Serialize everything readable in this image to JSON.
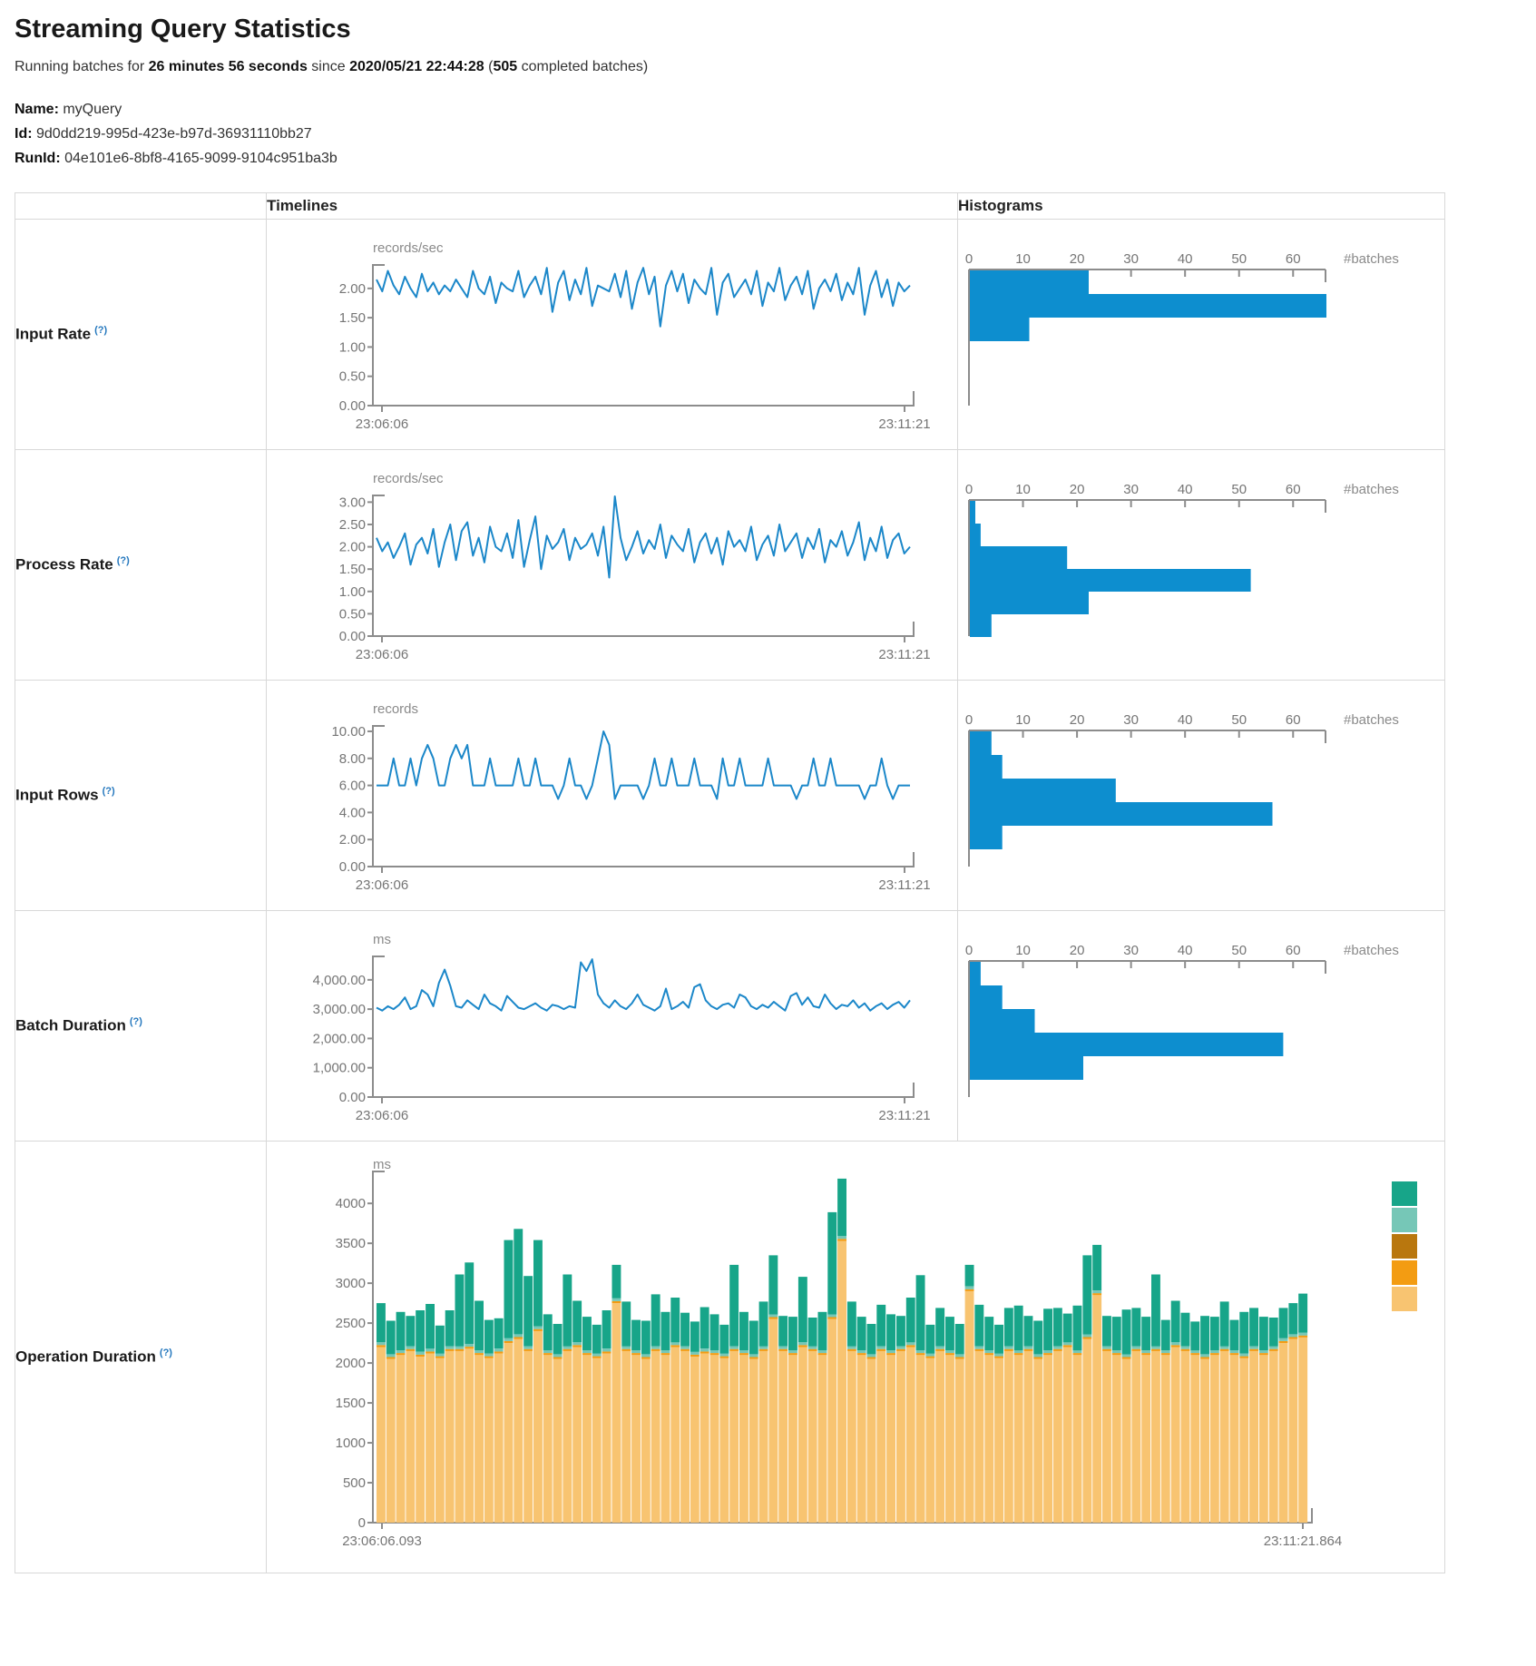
{
  "header": {
    "title": "Streaming Query Statistics",
    "summary_parts": [
      {
        "text": "Running batches for ",
        "bold": false
      },
      {
        "text": "26 minutes 56 seconds",
        "bold": true
      },
      {
        "text": " since ",
        "bold": false
      },
      {
        "text": "2020/05/21 22:44:28",
        "bold": true
      },
      {
        "text": " (",
        "bold": false
      },
      {
        "text": "505",
        "bold": true
      },
      {
        "text": " completed batches)",
        "bold": false
      }
    ],
    "meta": [
      {
        "label": "Name:",
        "value": "myQuery"
      },
      {
        "label": "Id:",
        "value": "9d0dd219-995d-423e-b97d-36931110bb27"
      },
      {
        "label": "RunId:",
        "value": "04e101e6-8bf8-4165-9099-9104c951ba3b"
      }
    ]
  },
  "table": {
    "columns": {
      "timelines": "Timelines",
      "histograms": "Histograms"
    },
    "help_marker": "(?)",
    "rows": [
      {
        "label": "Input Rate"
      },
      {
        "label": "Process Rate"
      },
      {
        "label": "Input Rows"
      },
      {
        "label": "Batch Duration"
      },
      {
        "label": "Operation Duration"
      }
    ]
  },
  "colors": {
    "line": "#1b87c9",
    "bar": "#0d8ecf",
    "axis": "#8c8c8c",
    "tick_text": "#757575",
    "unit_text": "#8a8a8a",
    "help": "#2578be",
    "legend": [
      "#17a589",
      "#76c7b7",
      "#b9770e",
      "#f39c12",
      "#f8c471"
    ],
    "op_segments": {
      "tan": "#f8c471",
      "orange": "#f39c12",
      "light_teal": "#76c7b7",
      "teal": "#17a589"
    }
  },
  "chart_data": [
    {
      "id": "input-rate-timeline",
      "render": "timeline",
      "type": "line",
      "unit": "records/sec",
      "x_start": "23:06:06",
      "x_end": "23:11:21",
      "ymax": 2.4,
      "y_ticks": [
        0,
        0.5,
        1,
        1.5,
        2
      ],
      "y_tick_labels": [
        "0.00",
        "0.50",
        "1.00",
        "1.50",
        "2.00"
      ],
      "values": [
        2.15,
        1.95,
        2.3,
        2.05,
        1.9,
        2.2,
        2.0,
        1.85,
        2.25,
        1.95,
        2.1,
        1.9,
        2.05,
        1.95,
        2.15,
        2.0,
        1.85,
        2.3,
        2.0,
        1.9,
        2.2,
        1.75,
        2.1,
        2.0,
        1.95,
        2.3,
        1.85,
        2.05,
        2.2,
        1.9,
        2.35,
        1.6,
        2.1,
        2.3,
        1.8,
        2.15,
        1.9,
        2.35,
        1.7,
        2.05,
        2.0,
        1.95,
        2.25,
        1.85,
        2.3,
        1.65,
        2.1,
        2.35,
        1.9,
        2.2,
        1.35,
        2.05,
        2.3,
        1.95,
        2.25,
        1.75,
        2.15,
        2.0,
        1.9,
        2.35,
        1.55,
        2.1,
        2.25,
        1.85,
        2.0,
        2.15,
        1.9,
        2.3,
        1.7,
        2.1,
        1.95,
        2.35,
        1.8,
        2.05,
        2.2,
        1.9,
        2.3,
        1.65,
        2.0,
        2.15,
        1.95,
        2.25,
        1.8,
        2.1,
        1.9,
        2.35,
        1.55,
        2.05,
        2.3,
        1.85,
        2.15,
        1.7,
        2.1,
        1.95,
        2.05
      ]
    },
    {
      "id": "input-rate-histogram",
      "render": "histogram",
      "type": "bar",
      "orientation": "horizontal",
      "xlabel": "#batches",
      "x_ticks": [
        0,
        10,
        20,
        30,
        40,
        50,
        60
      ],
      "xmax": 66,
      "values": [
        22,
        66,
        11
      ]
    },
    {
      "id": "process-rate-timeline",
      "render": "timeline",
      "type": "line",
      "unit": "records/sec",
      "x_start": "23:06:06",
      "x_end": "23:11:21",
      "ymax": 3.15,
      "y_ticks": [
        0,
        0.5,
        1,
        1.5,
        2,
        2.5,
        3
      ],
      "y_tick_labels": [
        "0.00",
        "0.50",
        "1.00",
        "1.50",
        "2.00",
        "2.50",
        "3.00"
      ],
      "values": [
        2.2,
        1.9,
        2.1,
        1.75,
        2.0,
        2.3,
        1.6,
        2.05,
        2.2,
        1.85,
        2.4,
        1.55,
        2.1,
        2.5,
        1.7,
        2.35,
        2.55,
        1.8,
        2.2,
        1.65,
        2.45,
        2.0,
        1.9,
        2.3,
        1.75,
        2.6,
        1.55,
        2.15,
        2.68,
        1.5,
        2.25,
        1.95,
        2.1,
        2.4,
        1.7,
        2.2,
        1.95,
        2.05,
        2.3,
        1.8,
        2.45,
        1.31,
        3.13,
        2.2,
        1.7,
        2.0,
        2.35,
        1.85,
        2.15,
        1.95,
        2.5,
        1.75,
        2.25,
        2.05,
        1.9,
        2.4,
        1.65,
        2.1,
        2.3,
        1.85,
        2.2,
        1.6,
        2.35,
        2.0,
        2.15,
        1.9,
        2.45,
        1.7,
        2.05,
        2.25,
        1.8,
        2.5,
        1.9,
        2.1,
        2.3,
        1.75,
        2.2,
        1.95,
        2.4,
        1.65,
        2.15,
        2.0,
        2.35,
        1.8,
        2.1,
        2.55,
        1.7,
        2.2,
        1.9,
        2.45,
        1.75,
        2.15,
        2.3,
        1.85,
        2.0
      ]
    },
    {
      "id": "process-rate-histogram",
      "render": "histogram",
      "type": "bar",
      "orientation": "horizontal",
      "xlabel": "#batches",
      "x_ticks": [
        0,
        10,
        20,
        30,
        40,
        50,
        60
      ],
      "xmax": 66,
      "values": [
        1,
        2,
        18,
        52,
        22,
        4
      ]
    },
    {
      "id": "input-rows-timeline",
      "render": "timeline",
      "type": "line",
      "unit": "records",
      "x_start": "23:06:06",
      "x_end": "23:11:21",
      "ymax": 10.4,
      "y_ticks": [
        0,
        2,
        4,
        6,
        8,
        10
      ],
      "y_tick_labels": [
        "0.00",
        "2.00",
        "4.00",
        "6.00",
        "8.00",
        "10.00"
      ],
      "values": [
        6,
        6,
        6,
        8,
        6,
        6,
        8,
        6,
        8,
        9,
        8,
        6,
        6,
        8,
        9,
        8,
        9,
        6,
        6,
        6,
        8,
        6,
        6,
        6,
        6,
        8,
        6,
        6,
        8,
        6,
        6,
        6,
        5,
        6,
        8,
        6,
        6,
        5,
        6,
        8,
        10,
        9,
        5,
        6,
        6,
        6,
        6,
        5,
        6,
        8,
        6,
        6,
        8,
        6,
        6,
        6,
        8,
        6,
        6,
        6,
        5,
        8,
        6,
        6,
        8,
        6,
        6,
        6,
        6,
        8,
        6,
        6,
        6,
        6,
        5,
        6,
        6,
        8,
        6,
        6,
        8,
        6,
        6,
        6,
        6,
        6,
        5,
        6,
        6,
        8,
        6,
        5,
        6,
        6,
        6
      ]
    },
    {
      "id": "input-rows-histogram",
      "render": "histogram",
      "type": "bar",
      "orientation": "horizontal",
      "xlabel": "#batches",
      "x_ticks": [
        0,
        10,
        20,
        30,
        40,
        50,
        60
      ],
      "xmax": 66,
      "values": [
        4,
        6,
        27,
        56,
        6
      ]
    },
    {
      "id": "batch-duration-timeline",
      "render": "timeline",
      "type": "line",
      "unit": "ms",
      "x_start": "23:06:06",
      "x_end": "23:11:21",
      "ymax": 4800,
      "y_ticks": [
        0,
        1000,
        2000,
        3000,
        4000
      ],
      "y_tick_labels": [
        "0.00",
        "1,000.00",
        "2,000.00",
        "3,000.00",
        "4,000.00"
      ],
      "values": [
        3050,
        2950,
        3100,
        3000,
        3150,
        3400,
        3000,
        3100,
        3650,
        3500,
        3100,
        3900,
        4350,
        3800,
        3100,
        3050,
        3300,
        3150,
        3000,
        3500,
        3200,
        3100,
        2950,
        3450,
        3250,
        3050,
        3000,
        3100,
        3200,
        3050,
        2950,
        3150,
        3100,
        3000,
        3100,
        3050,
        4600,
        4300,
        4700,
        3500,
        3200,
        3050,
        3300,
        3100,
        3000,
        3200,
        3500,
        3150,
        3050,
        2950,
        3100,
        3700,
        3000,
        3100,
        3250,
        3050,
        3750,
        3850,
        3300,
        3100,
        3000,
        3150,
        3200,
        3050,
        3500,
        3400,
        3100,
        3000,
        3150,
        3050,
        3250,
        3100,
        2950,
        3450,
        3550,
        3150,
        3400,
        3100,
        3050,
        3500,
        3200,
        3000,
        3150,
        3100,
        3300,
        3050,
        3200,
        2950,
        3100,
        3200,
        3000,
        3150,
        3250,
        3050,
        3300
      ]
    },
    {
      "id": "batch-duration-histogram",
      "render": "histogram",
      "type": "bar",
      "orientation": "horizontal",
      "xlabel": "#batches",
      "x_ticks": [
        0,
        10,
        20,
        30,
        40,
        50,
        60
      ],
      "xmax": 66,
      "values": [
        2,
        6,
        12,
        58,
        21
      ]
    },
    {
      "id": "operation-duration",
      "render": "stacked",
      "type": "bar",
      "stacked": true,
      "unit": "ms",
      "x_start": "23:06:06.093",
      "x_end": "23:11:21.864",
      "ymax": 4400,
      "y_ticks": [
        0,
        500,
        1000,
        1500,
        2000,
        2500,
        3000,
        3500,
        4000
      ],
      "y_tick_labels": [
        "0",
        "500",
        "1000",
        "1500",
        "2000",
        "2500",
        "3000",
        "3500",
        "4000"
      ],
      "segments": {
        "tan": [
          2200,
          2050,
          2100,
          2150,
          2080,
          2120,
          2060,
          2150,
          2150,
          2180,
          2100,
          2060,
          2120,
          2250,
          2300,
          2150,
          2400,
          2100,
          2050,
          2150,
          2200,
          2100,
          2060,
          2120,
          2750,
          2150,
          2100,
          2050,
          2150,
          2100,
          2200,
          2150,
          2080,
          2120,
          2100,
          2060,
          2150,
          2100,
          2050,
          2150,
          2550,
          2150,
          2100,
          2200,
          2150,
          2100,
          2550,
          3530,
          2150,
          2100,
          2050,
          2150,
          2100,
          2150,
          2200,
          2100,
          2060,
          2150,
          2100,
          2050,
          2900,
          2150,
          2100,
          2060,
          2150,
          2100,
          2150,
          2050,
          2100,
          2150,
          2200,
          2100,
          2300,
          2850,
          2150,
          2100,
          2050,
          2150,
          2100,
          2150,
          2100,
          2200,
          2150,
          2100,
          2050,
          2100,
          2150,
          2100,
          2060,
          2150,
          2100,
          2150,
          2250,
          2300,
          2320
        ],
        "orange_sliver": 25,
        "light_teal_sliver": 35,
        "teal": [
          490,
          420,
          480,
          380,
          520,
          560,
          350,
          450,
          900,
          1020,
          620,
          420,
          380,
          1230,
          1320,
          880,
          1080,
          450,
          380,
          900,
          520,
          420,
          360,
          480,
          420,
          560,
          380,
          420,
          650,
          480,
          560,
          420,
          380,
          520,
          450,
          360,
          1020,
          480,
          420,
          560,
          740,
          380,
          420,
          820,
          360,
          480,
          1280,
          720,
          560,
          420,
          380,
          520,
          450,
          380,
          560,
          940,
          360,
          480,
          420,
          380,
          270,
          520,
          420,
          360,
          480,
          560,
          380,
          420,
          520,
          480,
          360,
          560,
          990,
          570,
          380,
          420,
          560,
          480,
          420,
          900,
          380,
          520,
          420,
          360,
          480,
          420,
          560,
          380,
          520,
          480,
          420,
          360,
          380,
          390,
          490
        ]
      }
    }
  ]
}
